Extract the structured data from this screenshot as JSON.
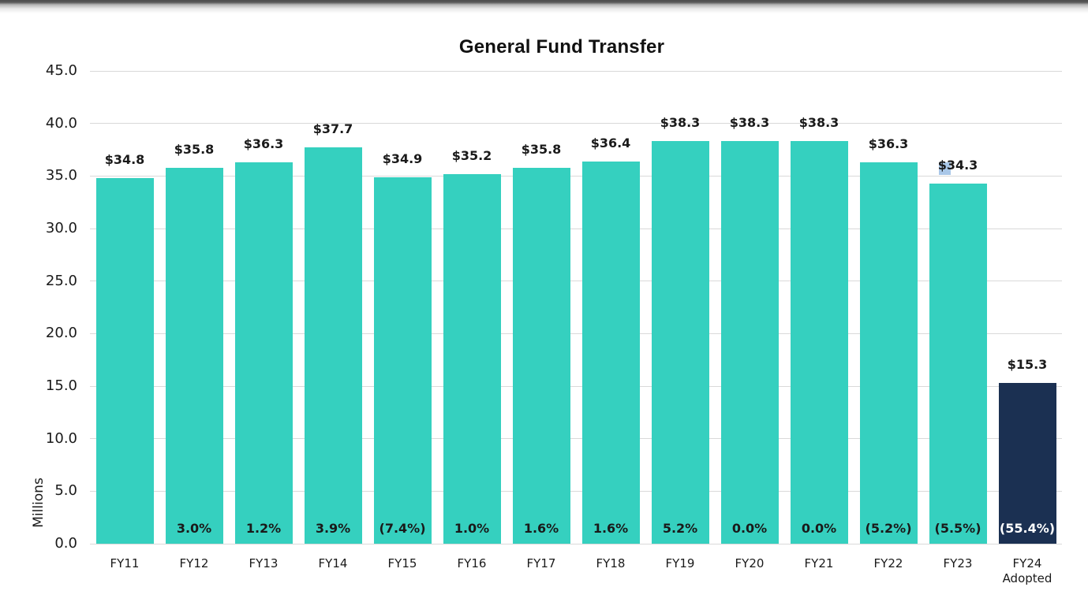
{
  "page": {
    "title": "General Fund Transfer"
  },
  "chart_data": {
    "type": "bar",
    "title": "General Fund Transfer",
    "xlabel": "",
    "ylabel": "Millions",
    "ylim": [
      0,
      45
    ],
    "y_tick_step": 5,
    "y_ticks": [
      "45.0",
      "40.0",
      "35.0",
      "30.0",
      "25.0",
      "20.0",
      "15.0",
      "10.0",
      "5.0",
      "0.0"
    ],
    "grid": true,
    "legend_position": "none",
    "categories": [
      "FY11",
      "FY12",
      "FY13",
      "FY14",
      "FY15",
      "FY16",
      "FY17",
      "FY18",
      "FY19",
      "FY20",
      "FY21",
      "FY22",
      "FY23",
      "FY24\nAdopted"
    ],
    "values": [
      34.8,
      35.8,
      36.3,
      37.7,
      34.9,
      35.2,
      35.8,
      36.4,
      38.3,
      38.3,
      38.3,
      36.3,
      34.3,
      15.3
    ],
    "value_labels": [
      "$34.8",
      "$35.8",
      "$36.3",
      "$37.7",
      "$34.9",
      "$35.2",
      "$35.8",
      "$36.4",
      "$38.3",
      "$38.3",
      "$38.3",
      "$36.3",
      "$34.3",
      "$15.3"
    ],
    "pct_change_labels": [
      "",
      "3.0%",
      "1.2%",
      "3.9%",
      "(7.4%)",
      "1.0%",
      "1.6%",
      "1.6%",
      "5.2%",
      "0.0%",
      "0.0%",
      "(5.2%)",
      "(5.5%)",
      "(55.4%)"
    ],
    "highlight_index": 13,
    "selection_artifact": {
      "bar_index": 12
    },
    "colors": {
      "bar_default": "#35d0bf",
      "bar_highlight": "#1b3052",
      "text": "#1a1a1a",
      "pct_label_on_highlight": "#ffffff",
      "gridline": "#d9d9d9",
      "selection_highlight": "#a9c7e8"
    }
  }
}
